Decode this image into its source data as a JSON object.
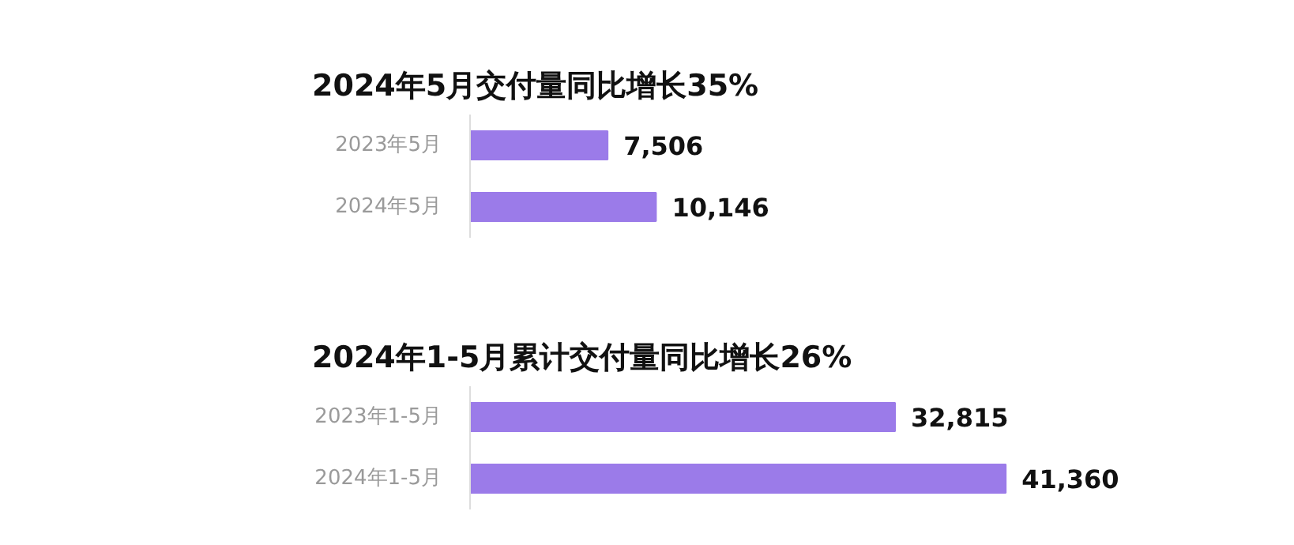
{
  "chart_data": [
    {
      "type": "bar",
      "orientation": "horizontal",
      "title": "2024年5月交付量同比增长35%",
      "categories": [
        "2023年5月",
        "2024年5月"
      ],
      "values": [
        7506,
        10146
      ],
      "color": "#9b7be9",
      "value_labels": [
        "7,506",
        "10,146"
      ]
    },
    {
      "type": "bar",
      "orientation": "horizontal",
      "title": "2024年1-5月累计交付量同比增长26%",
      "categories": [
        "2023年1-5月",
        "2024年1-5月"
      ],
      "values": [
        32815,
        41360
      ],
      "color": "#9b7be9",
      "value_labels": [
        "32,815",
        "41,360"
      ]
    }
  ]
}
